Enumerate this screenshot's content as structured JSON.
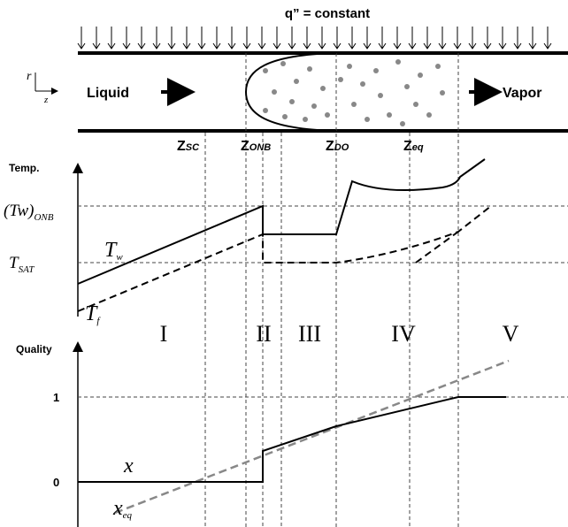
{
  "header": {
    "heat_flux": "q” = constant"
  },
  "pipe": {
    "axis_r": "r",
    "axis_z": "z",
    "inlet": "Liquid",
    "outlet": "Vapor"
  },
  "locations": [
    {
      "symbol": "Z",
      "sub": "SC"
    },
    {
      "symbol": "Z",
      "sub": "ONB"
    },
    {
      "symbol": "Z",
      "sub": "DO"
    },
    {
      "symbol": "Z",
      "sub": "eq"
    }
  ],
  "temperature_plot": {
    "axis_label": "Temp.",
    "levels": [
      {
        "main": "(Tw)",
        "sub": "ONB"
      },
      {
        "main": "T",
        "sub": "SAT"
      }
    ],
    "curves": [
      {
        "main": "T",
        "sub": "w"
      },
      {
        "main": "T",
        "sub": "f"
      }
    ]
  },
  "regions": [
    "I",
    "II",
    "III",
    "IV",
    "V"
  ],
  "quality_plot": {
    "axis_label": "Quality",
    "ticks": [
      "1",
      "0"
    ],
    "curves": [
      {
        "main": "x"
      },
      {
        "main": "x",
        "sub": "eq"
      }
    ]
  }
}
